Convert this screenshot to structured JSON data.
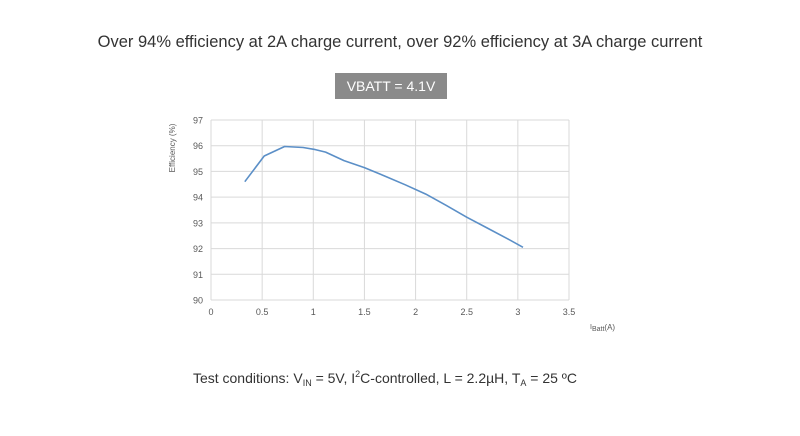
{
  "headline": "Over 94% efficiency at 2A charge current, over 92% efficiency at 3A charge current",
  "badge": "VBATT = 4.1V",
  "caption": {
    "prefix": "Test conditions: V",
    "vin_sub": "IN",
    "vin_value": " = 5V, I",
    "i2c_sup": "2",
    "i2c_rest": "C-controlled, L = 2.2µH, T",
    "ta_sub": "A",
    "ta_value": " = 25 ºC"
  },
  "colors": {
    "line": "#5b8fc7",
    "grid": "#d9d9d9",
    "axis_text": "#595959"
  },
  "chart_data": {
    "type": "line",
    "xlabel": {
      "main": "I",
      "sub": "Batt",
      "unit": "(A)"
    },
    "ylabel": "Efficiency (%)",
    "xlim": [
      0,
      3.5
    ],
    "ylim": [
      90,
      97
    ],
    "xticks": [
      0,
      0.5,
      1,
      1.5,
      2,
      2.5,
      3,
      3.5
    ],
    "xtick_labels": [
      "0",
      "0.5",
      "1",
      "1.5",
      "2",
      "2.5",
      "3",
      "3.5"
    ],
    "yticks": [
      90,
      91,
      92,
      93,
      94,
      95,
      96,
      97
    ],
    "ytick_labels": [
      "90",
      "91",
      "92",
      "93",
      "94",
      "95",
      "96",
      "97"
    ],
    "grid": true,
    "series": [
      {
        "x": [
          0.33,
          0.52,
          0.72,
          0.9,
          1.02,
          1.12,
          1.3,
          1.5,
          1.7,
          1.9,
          2.1,
          2.3,
          2.5,
          2.7,
          2.9,
          3.05
        ],
        "values": [
          94.6,
          95.6,
          95.97,
          95.93,
          95.85,
          95.75,
          95.42,
          95.15,
          94.82,
          94.48,
          94.12,
          93.68,
          93.22,
          92.8,
          92.38,
          92.05
        ]
      }
    ]
  }
}
